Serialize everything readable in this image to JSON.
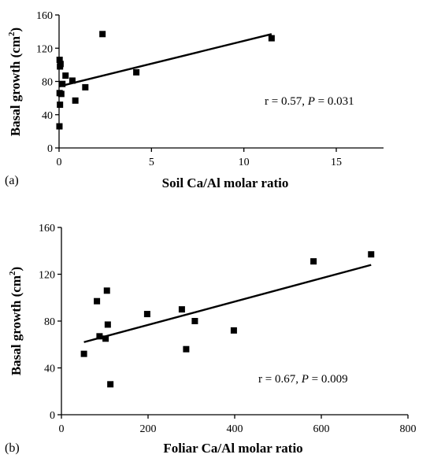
{
  "chart_data": [
    {
      "type": "scatter",
      "panel_label": "(a)",
      "xlabel": "Soil Ca/Al molar ratio",
      "ylabel": "Basal growth (cm",
      "ylabel_sup": "2",
      "ylabel_end": ")",
      "xlim": [
        0,
        15
      ],
      "ylim": [
        0,
        160
      ],
      "xticks": [
        0,
        5,
        10,
        15
      ],
      "yticks": [
        0,
        40,
        80,
        120,
        160
      ],
      "points": [
        {
          "x": 0.02,
          "y": 26
        },
        {
          "x": 0.05,
          "y": 52
        },
        {
          "x": 0.03,
          "y": 66
        },
        {
          "x": 0.12,
          "y": 65
        },
        {
          "x": 0.18,
          "y": 77
        },
        {
          "x": 0.35,
          "y": 87
        },
        {
          "x": 0.03,
          "y": 106
        },
        {
          "x": 0.08,
          "y": 101
        },
        {
          "x": 0.05,
          "y": 98
        },
        {
          "x": 0.72,
          "y": 81
        },
        {
          "x": 0.88,
          "y": 57
        },
        {
          "x": 1.42,
          "y": 73
        },
        {
          "x": 2.35,
          "y": 137
        },
        {
          "x": 4.18,
          "y": 91
        },
        {
          "x": 11.5,
          "y": 132
        }
      ],
      "trendline": {
        "x": [
          0,
          11.5
        ],
        "y": [
          74,
          137
        ]
      },
      "annotation": {
        "prefix": "r = 0.57, ",
        "italic": "P",
        "suffix": " = 0.031"
      }
    },
    {
      "type": "scatter",
      "panel_label": "(b)",
      "xlabel": "Foliar Ca/Al molar ratio",
      "ylabel": "Basal growth (cm",
      "ylabel_sup": "2",
      "ylabel_end": ")",
      "xlim": [
        0,
        800
      ],
      "ylim": [
        0,
        160
      ],
      "xticks": [
        0,
        200,
        400,
        600,
        800
      ],
      "yticks": [
        0,
        40,
        80,
        120,
        160
      ],
      "points": [
        {
          "x": 52,
          "y": 52
        },
        {
          "x": 82,
          "y": 97
        },
        {
          "x": 88,
          "y": 67
        },
        {
          "x": 102,
          "y": 65
        },
        {
          "x": 105,
          "y": 106
        },
        {
          "x": 107,
          "y": 77
        },
        {
          "x": 113,
          "y": 26
        },
        {
          "x": 198,
          "y": 86
        },
        {
          "x": 278,
          "y": 90
        },
        {
          "x": 288,
          "y": 56
        },
        {
          "x": 308,
          "y": 80
        },
        {
          "x": 398,
          "y": 72
        },
        {
          "x": 582,
          "y": 131
        },
        {
          "x": 715,
          "y": 137
        }
      ],
      "trendline": {
        "x": [
          52,
          715
        ],
        "y": [
          62,
          128
        ]
      },
      "annotation": {
        "prefix": "r = 0.67, ",
        "italic": "P",
        "suffix": " = 0.009"
      }
    }
  ]
}
